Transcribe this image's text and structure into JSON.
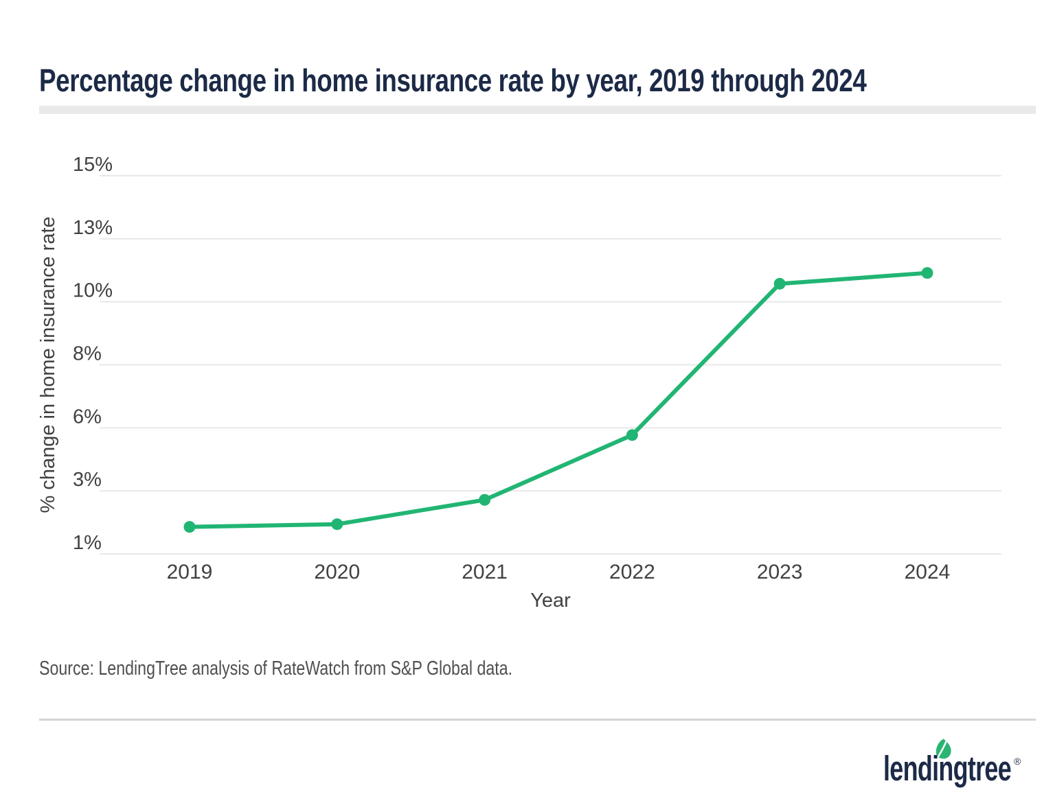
{
  "page": {
    "title": "Percentage change in home insurance rate by year, 2019 through 2024",
    "source_note": "Source: LendingTree analysis of RateWatch from S&P Global data."
  },
  "brand": {
    "wordmark": "lendingtree",
    "registered_mark": "®",
    "navy": "#1c2a47",
    "leaf_green": "#2ab573",
    "leaf_icon": "leaf-icon"
  },
  "chart_data": {
    "type": "line",
    "title": "Percentage change in home insurance rate by year, 2019 through 2024",
    "categories": [
      "2019",
      "2020",
      "2021",
      "2022",
      "2023",
      "2024"
    ],
    "series": [
      {
        "name": "% change in home insurance rate",
        "values": [
          2.0,
          2.1,
          3.0,
          5.4,
          11.0,
          11.4
        ],
        "color": "#21b573"
      }
    ],
    "xlabel": "Year",
    "ylabel": "% change in home insurance rate",
    "ylim": [
      1,
      15
    ],
    "ytick_labels_top_to_bottom": [
      "15%",
      "13%",
      "10%",
      "8%",
      "6%",
      "3%",
      "1%"
    ],
    "ytick_values_top_to_bottom": [
      15,
      12.667,
      10.333,
      8,
      5.667,
      3.333,
      1
    ],
    "grid": true,
    "legend": "none",
    "marker": "circle",
    "text_color": "#414141",
    "gridline_color": "#e8e8e8"
  }
}
